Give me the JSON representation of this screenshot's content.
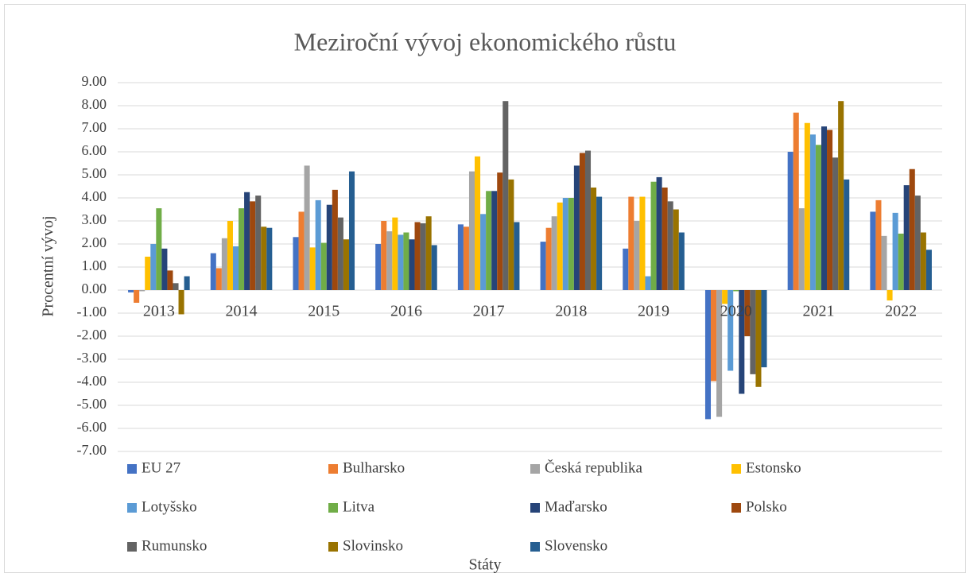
{
  "chart_data": {
    "type": "bar",
    "title": "Meziroční vývoj ekonomického růstu",
    "x_label": "Státy",
    "y_label": "Procentní vývoj",
    "categories": [
      "2013",
      "2014",
      "2015",
      "2016",
      "2017",
      "2018",
      "2019",
      "2020",
      "2021",
      "2022"
    ],
    "series": [
      {
        "name": "EU 27",
        "color": "#4472c4",
        "values": [
          -0.1,
          1.6,
          2.3,
          2.0,
          2.85,
          2.1,
          1.8,
          -5.6,
          6.0,
          3.4
        ]
      },
      {
        "name": "Bulharsko",
        "color": "#ed7d31",
        "values": [
          -0.55,
          0.95,
          3.4,
          3.0,
          2.75,
          2.7,
          4.05,
          -3.95,
          7.7,
          3.9
        ]
      },
      {
        "name": "Česká republika",
        "color": "#a5a5a5",
        "values": [
          -0.05,
          2.25,
          5.4,
          2.55,
          5.15,
          3.2,
          3.0,
          -5.5,
          3.55,
          2.35
        ]
      },
      {
        "name": "Estonsko",
        "color": "#ffc000",
        "values": [
          1.45,
          3.0,
          1.85,
          3.15,
          5.8,
          3.8,
          4.05,
          -0.6,
          7.25,
          -0.45
        ]
      },
      {
        "name": "Lotyšsko",
        "color": "#5b9bd5",
        "values": [
          2.0,
          1.9,
          3.9,
          2.4,
          3.3,
          4.0,
          0.6,
          -3.5,
          6.75,
          3.35
        ]
      },
      {
        "name": "Litva",
        "color": "#70ad47",
        "values": [
          3.55,
          3.55,
          2.05,
          2.5,
          4.3,
          4.0,
          4.7,
          -0.05,
          6.3,
          2.45
        ]
      },
      {
        "name": "Maďarsko",
        "color": "#264478",
        "values": [
          1.8,
          4.25,
          3.7,
          2.2,
          4.3,
          5.4,
          4.9,
          -4.5,
          7.1,
          4.55
        ]
      },
      {
        "name": "Polsko",
        "color": "#9e480e",
        "values": [
          0.85,
          3.85,
          4.35,
          2.95,
          5.1,
          5.95,
          4.45,
          -2.0,
          6.95,
          5.25
        ]
      },
      {
        "name": "Rumunsko",
        "color": "#636363",
        "values": [
          0.3,
          4.1,
          3.15,
          2.9,
          8.2,
          6.05,
          3.85,
          -3.65,
          5.75,
          4.1
        ]
      },
      {
        "name": "Slovinsko",
        "color": "#997300",
        "values": [
          -1.05,
          2.75,
          2.2,
          3.2,
          4.8,
          4.45,
          3.5,
          -4.2,
          8.2,
          2.5
        ]
      },
      {
        "name": "Slovensko",
        "color": "#255e91",
        "values": [
          0.6,
          2.7,
          5.15,
          1.95,
          2.95,
          4.05,
          2.5,
          -3.35,
          4.8,
          1.75
        ]
      }
    ],
    "ylim": [
      -7,
      9
    ],
    "yticks": [
      {
        "value": 9,
        "label": "9.00"
      },
      {
        "value": 8,
        "label": "8.00"
      },
      {
        "value": 7,
        "label": "7.00"
      },
      {
        "value": 6,
        "label": "6.00"
      },
      {
        "value": 5,
        "label": "5.00"
      },
      {
        "value": 4,
        "label": "4.00"
      },
      {
        "value": 3,
        "label": "3.00"
      },
      {
        "value": 2,
        "label": "2.00"
      },
      {
        "value": 1,
        "label": "1.00"
      },
      {
        "value": 0,
        "label": "0.00"
      },
      {
        "value": -1,
        "label": "-1.00"
      },
      {
        "value": -2,
        "label": "-2.00"
      },
      {
        "value": -3,
        "label": "-3.00"
      },
      {
        "value": -4,
        "label": "-4.00"
      },
      {
        "value": -5,
        "label": "-5.00"
      },
      {
        "value": -6,
        "label": "-6.00"
      },
      {
        "value": -7,
        "label": "-7.00"
      }
    ],
    "grid": true
  }
}
